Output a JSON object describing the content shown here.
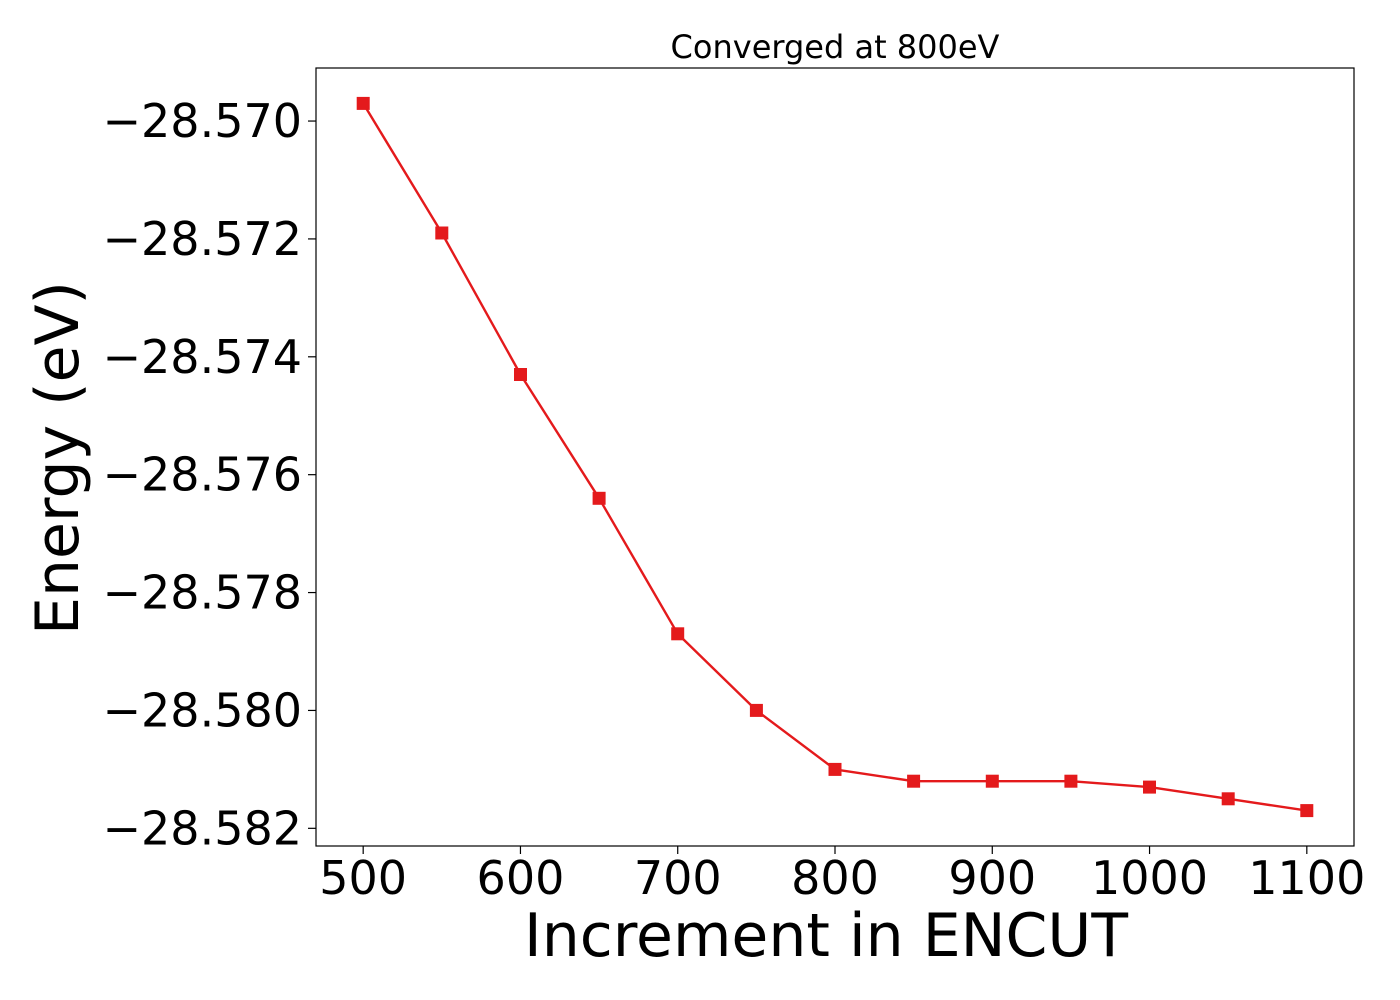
{
  "chart_data": {
    "type": "line",
    "title": "Converged at 800eV",
    "xlabel": "Increment in ENCUT",
    "ylabel": "Energy (eV)",
    "xlim": [
      470,
      1130
    ],
    "ylim": [
      -28.5823,
      -28.5691
    ],
    "xticks": [
      500,
      600,
      700,
      800,
      900,
      1000,
      1100
    ],
    "xtick_labels": [
      "500",
      "600",
      "700",
      "800",
      "900",
      "1000",
      "1100"
    ],
    "yticks": [
      -28.57,
      -28.572,
      -28.574,
      -28.576,
      -28.578,
      -28.58,
      -28.582
    ],
    "ytick_labels": [
      "−28.570",
      "−28.572",
      "−28.574",
      "−28.576",
      "−28.578",
      "−28.580",
      "−28.582"
    ],
    "grid": false,
    "series": [
      {
        "color": "#e41a1c",
        "marker": "square",
        "x": [
          500,
          550,
          600,
          650,
          700,
          750,
          800,
          850,
          900,
          950,
          1000,
          1050,
          1100
        ],
        "y": [
          -28.5697,
          -28.5719,
          -28.5743,
          -28.5764,
          -28.5787,
          -28.58,
          -28.581,
          -28.5812,
          -28.5812,
          -28.5812,
          -28.5813,
          -28.5815,
          -28.5817
        ]
      }
    ]
  }
}
